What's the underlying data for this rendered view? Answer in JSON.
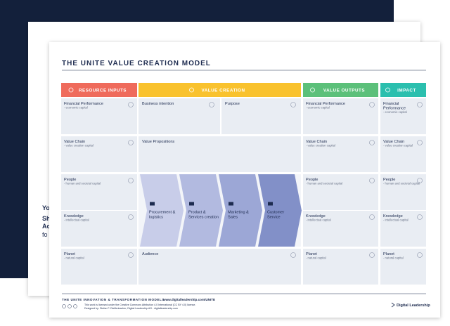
{
  "behind_page": {
    "fragments": [
      "Yo",
      "Sh",
      "Ac",
      "fo"
    ]
  },
  "title": "THE UNITE VALUE CREATION MODEL",
  "columns": [
    "RESOURCE INPUTS",
    "VALUE CREATION",
    "VALUE OUTPUTS",
    "IMPACT"
  ],
  "resource_inputs": [
    {
      "label": "Financial Performance",
      "sub": "- economic capital"
    },
    {
      "label": "Value Chain",
      "sub": "- value creation capital"
    },
    {
      "label": "People",
      "sub": "- human and societal capital"
    },
    {
      "label": "Knowledge",
      "sub": "- intellectual capital"
    },
    {
      "label": "Planet",
      "sub": "- natural capital"
    }
  ],
  "value_creation": {
    "business_intention": "Business intention",
    "purpose": "Purpose",
    "value_propositions": "Value Propositions",
    "activities": [
      [
        "Procurement &",
        "logistics"
      ],
      [
        "Product &",
        "Services creation"
      ],
      [
        "Marketing &",
        "Sales"
      ],
      [
        "Customer",
        "Service"
      ]
    ],
    "audience": "Audience"
  },
  "value_outputs": [
    {
      "label": "Financial Performance",
      "sub": "- economic capital"
    },
    {
      "label": "Value Chain",
      "sub": "- value creation capital"
    },
    {
      "label": "People",
      "sub": "- human and societal capital"
    },
    {
      "label": "Knowledge",
      "sub": "- intellectual capital"
    },
    {
      "label": "Planet",
      "sub": "- natural capital"
    }
  ],
  "impact": [
    {
      "label": [
        "Financial",
        "Performance"
      ],
      "sub": "- economic capital"
    },
    {
      "label": [
        "Value Chain"
      ],
      "sub": "- value creation capital"
    },
    {
      "label": [
        "People"
      ],
      "sub": "- human and societal capital"
    },
    {
      "label": [
        "Knowledge"
      ],
      "sub": "- intellectual capital"
    },
    {
      "label": [
        "Planet"
      ],
      "sub": "- natural capital"
    }
  ],
  "footer": {
    "series": "THE UNITE INNOVATION & TRANSFORMATION MODELS",
    "url": "www.digitalleadership.com/UNITE",
    "license": "This work is licensed under the Creative Commons Attribution 4.0 International (CC BY 4.0) license.",
    "designed": "Designed by: Stefan F. Dieffenbacher, Digital Leadership AG - digitalleadership.com",
    "brand": "Digital Leadership"
  }
}
